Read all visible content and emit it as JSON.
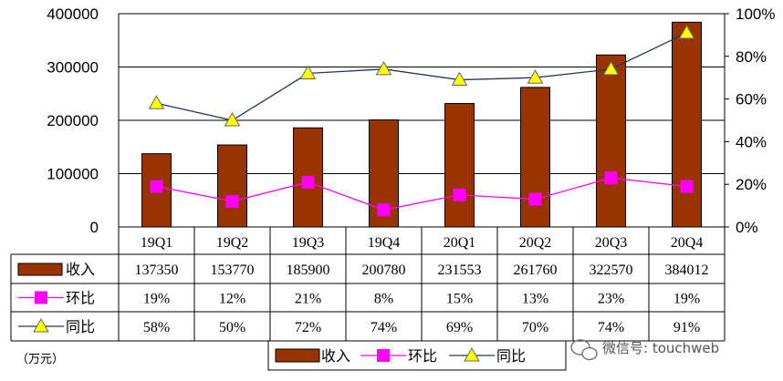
{
  "chart_data": {
    "type": "bar",
    "categories": [
      "19Q1",
      "19Q2",
      "19Q3",
      "19Q4",
      "20Q1",
      "20Q2",
      "20Q3",
      "20Q4"
    ],
    "series": [
      {
        "name": "收入",
        "type": "bar",
        "axis": "left",
        "color": "#993300",
        "values": [
          137350,
          153770,
          185900,
          200780,
          231553,
          261760,
          322570,
          384012
        ]
      },
      {
        "name": "环比",
        "type": "line",
        "axis": "right",
        "color": "#ff00ff",
        "marker": "square",
        "values": [
          19,
          12,
          21,
          8,
          15,
          13,
          23,
          19
        ],
        "table_labels": [
          "19%",
          "12%",
          "21%",
          "8%",
          "15%",
          "13%",
          "23%",
          "19%"
        ]
      },
      {
        "name": "同比",
        "type": "line",
        "axis": "right",
        "color": "#ffff00",
        "line_color": "#1f3a5a",
        "marker": "triangle",
        "values": [
          58,
          50,
          72,
          74,
          69,
          70,
          74,
          91
        ],
        "table_labels": [
          "58%",
          "50%",
          "72%",
          "74%",
          "69%",
          "70%",
          "74%",
          "91%"
        ]
      }
    ],
    "y_left": {
      "ylim": [
        0,
        400000
      ],
      "ticks": [
        "0",
        "100000",
        "200000",
        "300000",
        "400000"
      ]
    },
    "y_right": {
      "ylim": [
        0,
        100
      ],
      "ticks": [
        "0%",
        "20%",
        "40%",
        "60%",
        "80%",
        "100%"
      ]
    },
    "grid": true,
    "unit_label": "（万元）",
    "legend": {
      "position": "bottom",
      "items": [
        "收入",
        "环比",
        "同比"
      ]
    },
    "watermark": "微信号: touchweb"
  }
}
